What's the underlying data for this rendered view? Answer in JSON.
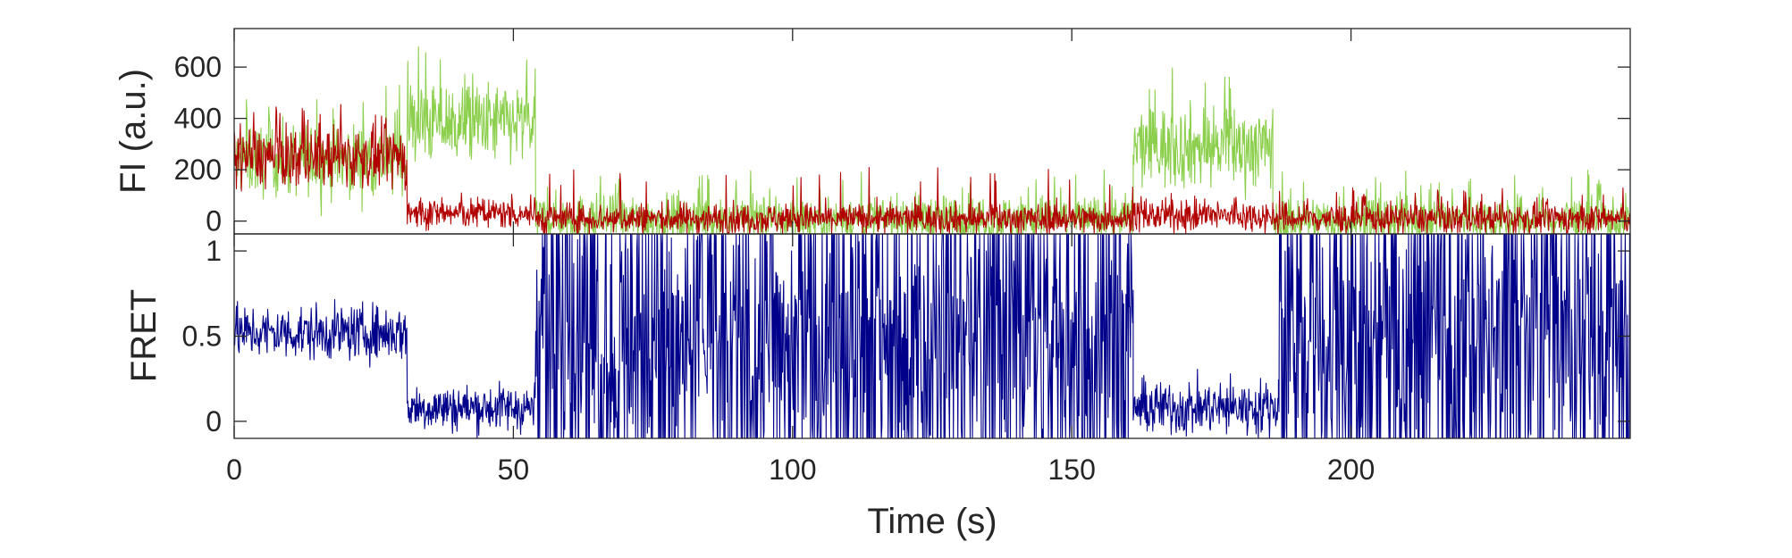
{
  "chart_data": [
    {
      "type": "line",
      "panel": "top",
      "ylabel": "FI (a.u.)",
      "ylim": [
        -50,
        750
      ],
      "yticks": [
        0,
        200,
        400,
        600
      ],
      "xlim": [
        0,
        250
      ],
      "xticks_labeled": false,
      "grid": false,
      "legend": "none",
      "series": [
        {
          "color": "#8ccf4d",
          "segments": [
            {
              "t0": 0,
              "t1": 31,
              "level": 240,
              "noise": 70,
              "spike": 560
            },
            {
              "t0": 31,
              "t1": 54,
              "level": 380,
              "noise": 80,
              "spike": 690
            },
            {
              "t0": 54,
              "t1": 161,
              "level": 10,
              "noise": 45,
              "spike": 200
            },
            {
              "t0": 161,
              "t1": 186,
              "level": 290,
              "noise": 80,
              "spike": 600
            },
            {
              "t0": 186,
              "t1": 250,
              "level": 5,
              "noise": 45,
              "spike": 200
            }
          ]
        },
        {
          "color": "#b20000",
          "segments": [
            {
              "t0": 0,
              "t1": 31,
              "level": 250,
              "noise": 60,
              "spike": 460
            },
            {
              "t0": 31,
              "t1": 54,
              "level": 30,
              "noise": 30,
              "spike": 110
            },
            {
              "t0": 54,
              "t1": 161,
              "level": 10,
              "noise": 30,
              "spike": 210
            },
            {
              "t0": 161,
              "t1": 186,
              "level": 20,
              "noise": 30,
              "spike": 110
            },
            {
              "t0": 186,
              "t1": 250,
              "level": 10,
              "noise": 30,
              "spike": 130
            }
          ]
        }
      ]
    },
    {
      "type": "line",
      "panel": "bottom",
      "xlabel": "Time (s)",
      "ylabel": "FRET",
      "ylim": [
        -0.1,
        1.1
      ],
      "yticks": [
        0,
        0.5,
        1
      ],
      "ytick_labels": [
        "0",
        "0.5",
        "1"
      ],
      "xlim": [
        0,
        250
      ],
      "xticks": [
        0,
        50,
        100,
        150,
        200
      ],
      "grid": false,
      "legend": "none",
      "series": [
        {
          "color": "#00008b",
          "segments": [
            {
              "t0": 0,
              "t1": 31,
              "level": 0.52,
              "noise": 0.08,
              "mode": "steady"
            },
            {
              "t0": 31,
              "t1": 54,
              "level": 0.08,
              "noise": 0.07,
              "mode": "steady"
            },
            {
              "t0": 54,
              "t1": 161,
              "level": 0.5,
              "noise": 0.6,
              "mode": "random"
            },
            {
              "t0": 161,
              "t1": 187,
              "level": 0.08,
              "noise": 0.08,
              "mode": "steady"
            },
            {
              "t0": 187,
              "t1": 250,
              "level": 0.5,
              "noise": 0.6,
              "mode": "random"
            }
          ]
        }
      ]
    }
  ]
}
